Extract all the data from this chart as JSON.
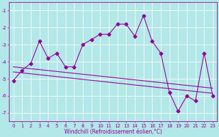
{
  "xlabel": "Windchill (Refroidissement éolien,°C)",
  "background_color": "#b2e8e8",
  "grid_color": "#ffffff",
  "line_color": "#990099",
  "xlim": [
    -0.5,
    23.5
  ],
  "ylim": [
    -7.5,
    -0.5
  ],
  "yticks": [
    -7,
    -6,
    -5,
    -4,
    -3,
    -2,
    -1
  ],
  "xticks": [
    0,
    1,
    2,
    3,
    4,
    5,
    6,
    7,
    8,
    9,
    10,
    11,
    12,
    13,
    14,
    15,
    16,
    17,
    18,
    19,
    20,
    21,
    22,
    23
  ],
  "data_x": [
    0,
    1,
    2,
    3,
    4,
    5,
    6,
    7,
    8,
    9,
    10,
    11,
    12,
    13,
    14,
    15,
    16,
    17,
    18,
    19,
    20,
    21,
    22,
    23
  ],
  "data_y": [
    -5.1,
    -4.5,
    -4.1,
    -2.8,
    -3.8,
    -3.5,
    -4.3,
    -4.3,
    -3.0,
    -2.7,
    -2.4,
    -2.4,
    -1.8,
    -1.8,
    -2.5,
    -1.3,
    -2.8,
    -3.5,
    -5.8,
    -6.9,
    -6.0,
    -6.3,
    -3.5,
    -6.0
  ],
  "reg_line1": [
    -4.3,
    -5.55
  ],
  "reg_line2": [
    -4.6,
    -5.85
  ],
  "marker_size": 2.5,
  "line_width": 0.8,
  "tick_fontsize": 5.0,
  "xlabel_fontsize": 5.5
}
